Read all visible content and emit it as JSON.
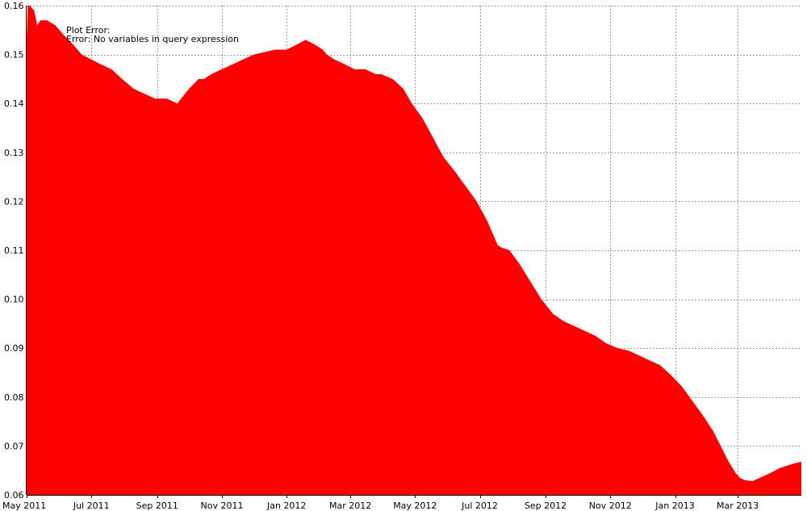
{
  "chart_data": {
    "type": "area",
    "title": "",
    "xlabel": "",
    "ylabel": "",
    "x_range": [
      "2011-05-01",
      "2013-04-30"
    ],
    "ylim": [
      0.06,
      0.16
    ],
    "grid": true,
    "legend": "none",
    "colors": {
      "fill": "#ff0000",
      "grid": "#9a9a9a",
      "axis": "#000000",
      "background": "#ffffff"
    },
    "x_ticks": [
      {
        "date": "2011-05-01",
        "label": "May 2011"
      },
      {
        "date": "2011-07-01",
        "label": "Jul 2011"
      },
      {
        "date": "2011-09-01",
        "label": "Sep 2011"
      },
      {
        "date": "2011-11-01",
        "label": "Nov 2011"
      },
      {
        "date": "2012-01-01",
        "label": "Jan 2012"
      },
      {
        "date": "2012-03-01",
        "label": "Mar 2012"
      },
      {
        "date": "2012-05-01",
        "label": "May 2012"
      },
      {
        "date": "2012-07-01",
        "label": "Jul 2012"
      },
      {
        "date": "2012-09-01",
        "label": "Sep 2012"
      },
      {
        "date": "2012-11-01",
        "label": "Nov 2012"
      },
      {
        "date": "2013-01-01",
        "label": "Jan 2013"
      },
      {
        "date": "2013-03-01",
        "label": "Mar 2013"
      }
    ],
    "y_ticks": [
      {
        "value": 0.06,
        "label": "0.06"
      },
      {
        "value": 0.07,
        "label": "0.07"
      },
      {
        "value": 0.08,
        "label": "0.08"
      },
      {
        "value": 0.09,
        "label": "0.09"
      },
      {
        "value": 0.1,
        "label": "0.10"
      },
      {
        "value": 0.11,
        "label": "0.11"
      },
      {
        "value": 0.12,
        "label": "0.12"
      },
      {
        "value": 0.13,
        "label": "0.13"
      },
      {
        "value": 0.14,
        "label": "0.14"
      },
      {
        "value": 0.15,
        "label": "0.15"
      },
      {
        "value": 0.16,
        "label": "0.16"
      }
    ],
    "annotations": [
      "Plot Error:",
      "Error: No variables in query expression"
    ],
    "series": [
      {
        "x": [
          "2011-05-01",
          "2011-05-02",
          "2011-05-04",
          "2011-05-08",
          "2011-05-11",
          "2011-05-14",
          "2011-05-20",
          "2011-05-28",
          "2011-06-05",
          "2011-06-14",
          "2011-06-22",
          "2011-07-01",
          "2011-07-10",
          "2011-07-20",
          "2011-07-30",
          "2011-08-10",
          "2011-08-20",
          "2011-08-30",
          "2011-09-10",
          "2011-09-20",
          "2011-10-01",
          "2011-10-10",
          "2011-10-15",
          "2011-10-22",
          "2011-11-01",
          "2011-11-11",
          "2011-11-21",
          "2011-12-01",
          "2011-12-11",
          "2011-12-21",
          "2012-01-01",
          "2012-01-10",
          "2012-01-19",
          "2012-01-28",
          "2012-02-04",
          "2012-02-08",
          "2012-02-15",
          "2012-02-25",
          "2012-03-05",
          "2012-03-15",
          "2012-03-25",
          "2012-03-30",
          "2012-04-10",
          "2012-04-20",
          "2012-04-28",
          "2012-05-08",
          "2012-05-18",
          "2012-05-28",
          "2012-06-08",
          "2012-06-18",
          "2012-06-28",
          "2012-07-08",
          "2012-07-18",
          "2012-07-22",
          "2012-07-29",
          "2012-08-08",
          "2012-08-18",
          "2012-08-28",
          "2012-09-08",
          "2012-09-18",
          "2012-09-28",
          "2012-10-08",
          "2012-10-18",
          "2012-10-28",
          "2012-11-08",
          "2012-11-18",
          "2012-11-28",
          "2012-12-08",
          "2012-12-18",
          "2012-12-28",
          "2013-01-08",
          "2013-01-18",
          "2013-01-28",
          "2013-02-06",
          "2013-02-13",
          "2013-02-20",
          "2013-02-27",
          "2013-03-03",
          "2013-03-08",
          "2013-03-15",
          "2013-03-22",
          "2013-04-01",
          "2013-04-10",
          "2013-04-20",
          "2013-04-30"
        ],
        "y": [
          0.153,
          0.16,
          0.16,
          0.159,
          0.156,
          0.157,
          0.157,
          0.156,
          0.154,
          0.152,
          0.15,
          0.149,
          0.148,
          0.147,
          0.145,
          0.143,
          0.142,
          0.141,
          0.141,
          0.14,
          0.143,
          0.145,
          0.145,
          0.146,
          0.147,
          0.148,
          0.149,
          0.15,
          0.1505,
          0.151,
          0.151,
          0.152,
          0.153,
          0.152,
          0.151,
          0.15,
          0.149,
          0.148,
          0.147,
          0.147,
          0.146,
          0.146,
          0.145,
          0.143,
          0.14,
          0.137,
          0.133,
          0.129,
          0.126,
          0.123,
          0.12,
          0.116,
          0.111,
          0.1105,
          0.11,
          0.107,
          0.1035,
          0.1,
          0.097,
          0.0955,
          0.0945,
          0.0935,
          0.0925,
          0.091,
          0.09,
          0.0895,
          0.0885,
          0.0875,
          0.0865,
          0.0845,
          0.082,
          0.079,
          0.076,
          0.073,
          0.07,
          0.067,
          0.0645,
          0.0635,
          0.063,
          0.0628,
          0.0635,
          0.0645,
          0.0655,
          0.0662,
          0.0668
        ]
      }
    ]
  }
}
